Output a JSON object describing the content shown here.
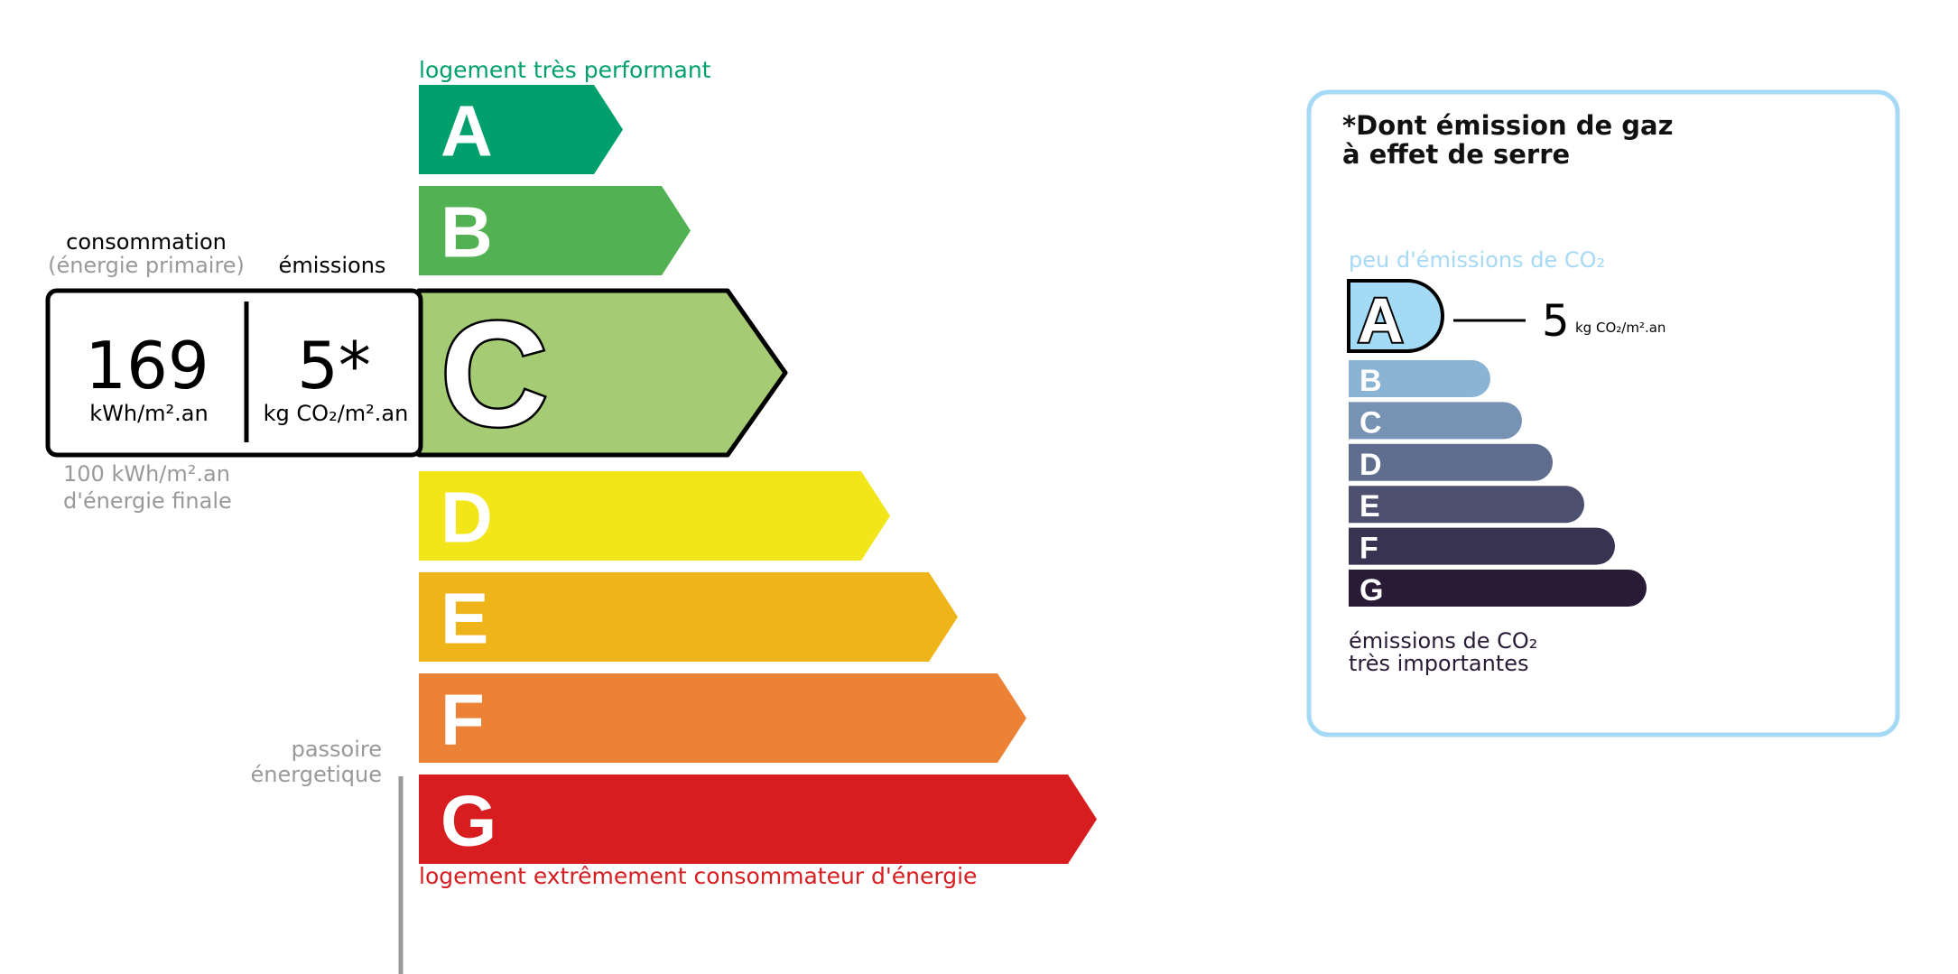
{
  "energy": {
    "top_label": "logement très performant",
    "bottom_label": "logement extrêmement consommateur d'énergie",
    "passoire_label": [
      "passoire",
      "énergetique"
    ],
    "classes": [
      {
        "letter": "A",
        "color": "#00a06d"
      },
      {
        "letter": "B",
        "color": "#52b153"
      },
      {
        "letter": "C",
        "color": "#a5cc74"
      },
      {
        "letter": "D",
        "color": "#f2e61b"
      },
      {
        "letter": "E",
        "color": "#efb41a"
      },
      {
        "letter": "F",
        "color": "#eb8235"
      },
      {
        "letter": "G",
        "color": "#d71d20"
      }
    ],
    "current_class": "C",
    "consumption_header": "consommation",
    "consumption_subheader": "(énergie primaire)",
    "emissions_header": "émissions",
    "consumption_value": "169",
    "consumption_unit": "kWh/m².an",
    "emissions_value": "5*",
    "emissions_unit": "kg CO₂/m².an",
    "final_energy_line1": "100 kWh/m².an",
    "final_energy_line2": "d'énergie finale"
  },
  "ghg": {
    "title_line1": "*Dont émission de gaz",
    "title_line2": "à effet de serre",
    "top_label": "peu d'émissions de CO₂",
    "bottom_label_line1": "émissions de CO₂",
    "bottom_label_line2": "très importantes",
    "current_class": "A",
    "value": "5",
    "unit": "kg CO₂/m².an",
    "border_color": "#a6d9f5",
    "classes": [
      {
        "letter": "A",
        "color": "#a3dbf6"
      },
      {
        "letter": "B",
        "color": "#8bb4d4"
      },
      {
        "letter": "C",
        "color": "#7793b4"
      },
      {
        "letter": "D",
        "color": "#5f6d8f"
      },
      {
        "letter": "E",
        "color": "#4c4f6e"
      },
      {
        "letter": "F",
        "color": "#383350"
      },
      {
        "letter": "G",
        "color": "#291a35"
      }
    ]
  }
}
